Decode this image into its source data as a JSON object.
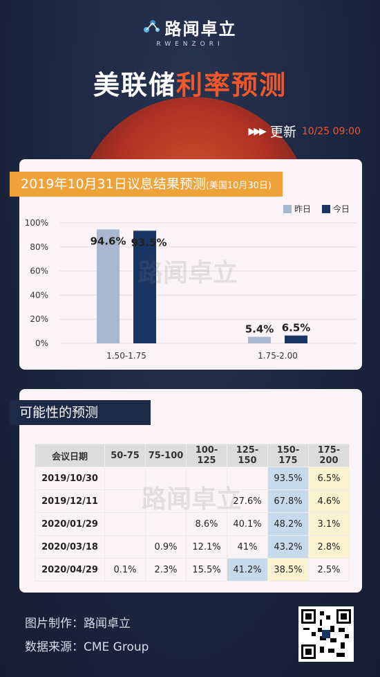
{
  "brand": {
    "name": "路闻卓立",
    "sub": "RWENZORI",
    "logo_icon": "molecule-icon"
  },
  "headline": {
    "part1": "美联储",
    "part2": "利率预测",
    "accent_color": "#f0582c"
  },
  "update": {
    "arrows": "▶▶▶",
    "label": "更新",
    "time": "10/25 09:00"
  },
  "chart_section": {
    "title": "2019年10月31日议息结果预测",
    "title_note": "(美国10月30日)",
    "legend": [
      {
        "label": "昨日",
        "color": "#aab8cf"
      },
      {
        "label": "今日",
        "color": "#1b3563"
      }
    ]
  },
  "chart_data": {
    "type": "bar",
    "categories": [
      "1.50-1.75",
      "1.75-2.00"
    ],
    "series": [
      {
        "name": "昨日",
        "values": [
          94.6,
          5.4
        ],
        "labels": [
          "94.6%",
          "5.4%"
        ],
        "color": "#aab8cf"
      },
      {
        "name": "今日",
        "values": [
          93.5,
          6.5
        ],
        "labels": [
          "93.5%",
          "6.5%"
        ],
        "color": "#1b3563"
      }
    ],
    "yticks": [
      "0%",
      "20%",
      "40%",
      "60%",
      "80%",
      "100%"
    ],
    "ylim": [
      0,
      100
    ],
    "grid": true,
    "legend_position": "top-right"
  },
  "table_section": {
    "title": "可能性的预测",
    "headers": [
      "会议日期",
      "50-75",
      "75-100",
      "100-125",
      "125-150",
      "150-175",
      "175-200"
    ],
    "rows": [
      [
        "2019/10/30",
        "",
        "",
        "",
        "",
        "93.5%",
        "6.5%"
      ],
      [
        "2019/12/11",
        "",
        "",
        "",
        "27.6%",
        "67.8%",
        "4.6%"
      ],
      [
        "2020/01/29",
        "",
        "",
        "8.6%",
        "40.1%",
        "48.2%",
        "3.1%"
      ],
      [
        "2020/03/18",
        "",
        "0.9%",
        "12.1%",
        "41%",
        "43.2%",
        "2.8%"
      ],
      [
        "2020/04/29",
        "0.1%",
        "2.3%",
        "15.5%",
        "41.2%",
        "38.5%",
        "2.5%"
      ]
    ],
    "highlight_colors": {
      "max": "#c7daec",
      "second": "#fbf3cf"
    }
  },
  "footer": {
    "made_by": "图片制作：路闻卓立",
    "source": "数据来源：CME Group",
    "qr_icon": "qr-code-icon"
  }
}
